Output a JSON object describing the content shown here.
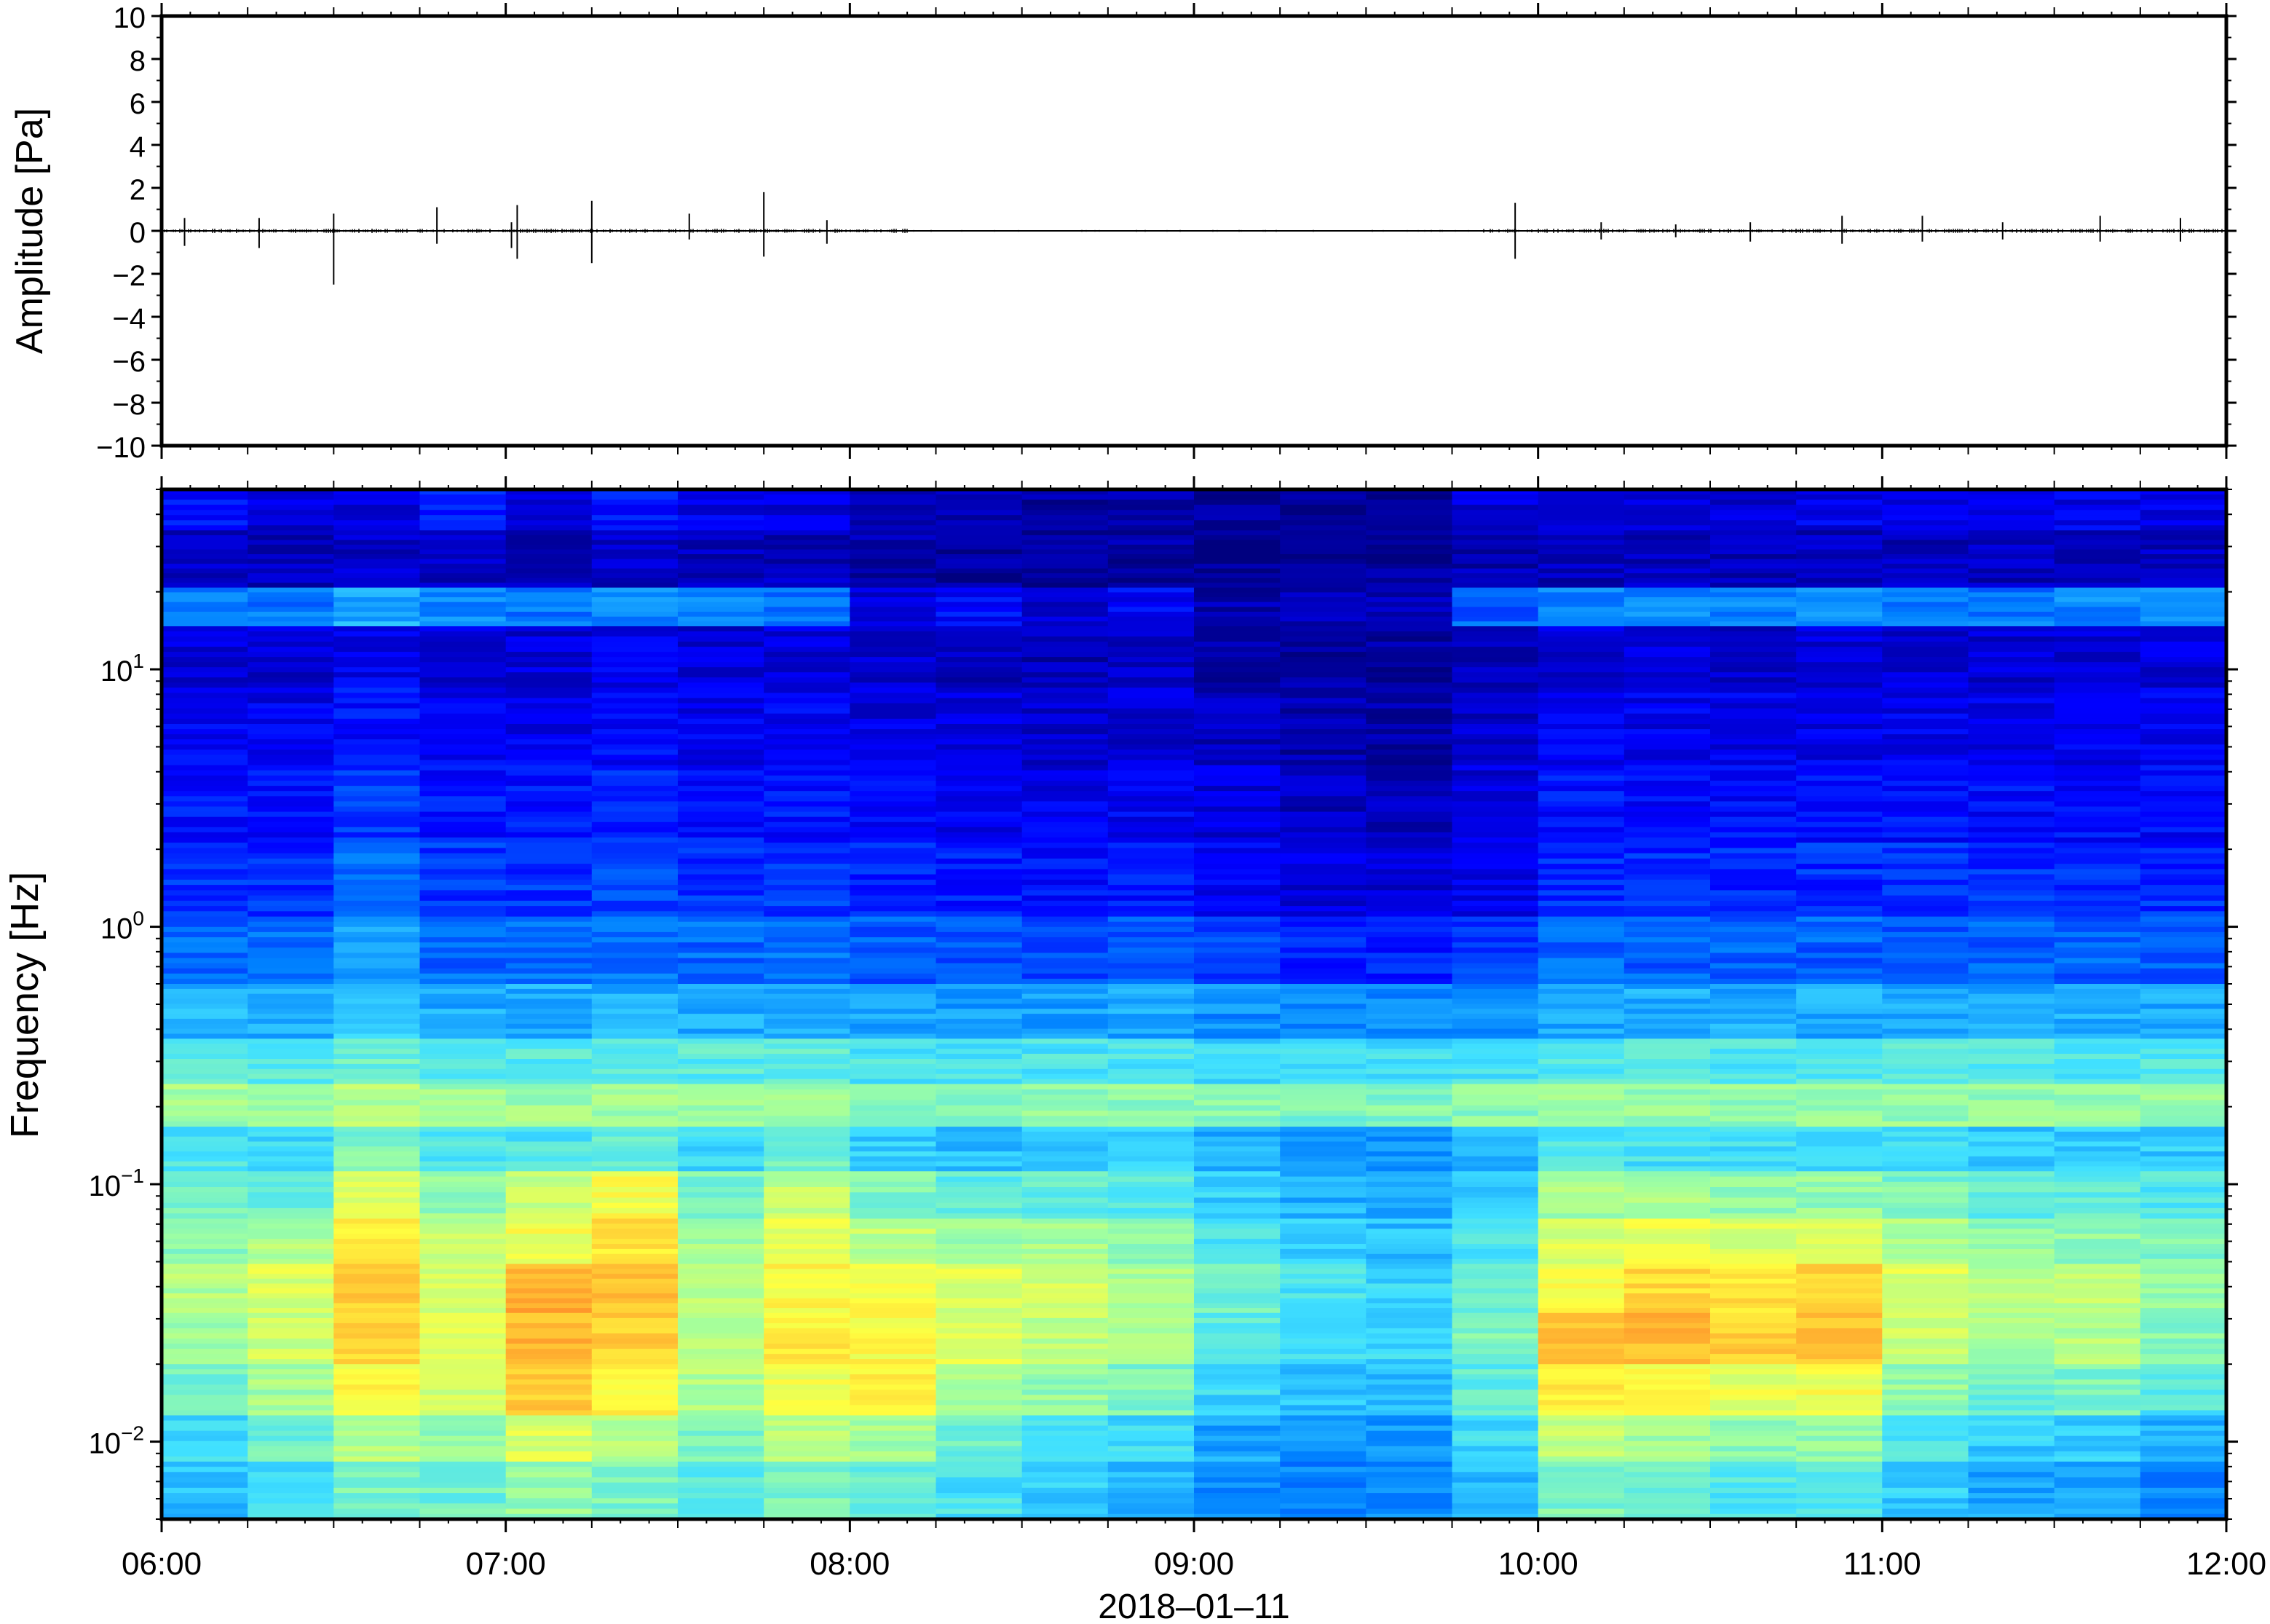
{
  "date_label": "2018–01–11",
  "x_ticks": [
    {
      "t": "06:00",
      "label": "06:00"
    },
    {
      "t": "07:00",
      "label": "07:00"
    },
    {
      "t": "08:00",
      "label": "08:00"
    },
    {
      "t": "09:00",
      "label": "09:00"
    },
    {
      "t": "10:00",
      "label": "10:00"
    },
    {
      "t": "11:00",
      "label": "11:00"
    },
    {
      "t": "12:00",
      "label": "12:00"
    }
  ],
  "chart_data": [
    {
      "type": "line",
      "ylabel": "Amplitude [Pa]",
      "xlim": [
        "06:00",
        "12:00"
      ],
      "ylim": [
        -10,
        10
      ],
      "y_ticks": [
        {
          "v": 10,
          "label": "10"
        },
        {
          "v": 8,
          "label": "8"
        },
        {
          "v": 6,
          "label": "6"
        },
        {
          "v": 4,
          "label": "4"
        },
        {
          "v": 2,
          "label": "2"
        },
        {
          "v": 0,
          "label": "0"
        },
        {
          "v": -2,
          "label": "−2"
        },
        {
          "v": -4,
          "label": "−4"
        },
        {
          "v": -6,
          "label": "−6"
        },
        {
          "v": -8,
          "label": "−8"
        },
        {
          "v": -10,
          "label": "−10"
        }
      ],
      "baseline": 0,
      "spikes": [
        {
          "t": "06:04",
          "max": 0.6,
          "min": -0.7
        },
        {
          "t": "06:17",
          "max": 0.6,
          "min": -0.8
        },
        {
          "t": "06:30",
          "max": 0.8,
          "min": -2.5
        },
        {
          "t": "06:48",
          "max": 1.1,
          "min": -0.6
        },
        {
          "t": "07:01",
          "max": 0.4,
          "min": -0.8
        },
        {
          "t": "07:02",
          "max": 1.2,
          "min": -1.3
        },
        {
          "t": "07:15",
          "max": 1.4,
          "min": -1.5
        },
        {
          "t": "07:32",
          "max": 0.8,
          "min": -0.4
        },
        {
          "t": "07:45",
          "max": 1.8,
          "min": -1.2
        },
        {
          "t": "07:56",
          "max": 0.5,
          "min": -0.6
        },
        {
          "t": "09:56",
          "max": 1.3,
          "min": -1.3
        },
        {
          "t": "10:11",
          "max": 0.4,
          "min": -0.4
        },
        {
          "t": "10:24",
          "max": 0.3,
          "min": -0.3
        },
        {
          "t": "10:37",
          "max": 0.4,
          "min": -0.5
        },
        {
          "t": "10:53",
          "max": 0.7,
          "min": -0.6
        },
        {
          "t": "11:07",
          "max": 0.7,
          "min": -0.5
        },
        {
          "t": "11:21",
          "max": 0.4,
          "min": -0.4
        },
        {
          "t": "11:38",
          "max": 0.7,
          "min": -0.5
        },
        {
          "t": "11:52",
          "max": 0.6,
          "min": -0.5
        }
      ],
      "colors": {
        "trace": "#000000",
        "frame": "#000000"
      }
    },
    {
      "type": "heatmap",
      "ylabel": "Frequency [Hz]",
      "xlabel": "2018–01–11",
      "y_scale": "log",
      "xlim": [
        "06:00",
        "12:00"
      ],
      "ylim": [
        0.005,
        50
      ],
      "y_ticks": [
        {
          "v": 10,
          "base": "10",
          "exp": "1"
        },
        {
          "v": 1,
          "base": "10",
          "exp": "0"
        },
        {
          "v": 0.1,
          "base": "10",
          "exp": "−1"
        },
        {
          "v": 0.01,
          "base": "10",
          "exp": "−2"
        }
      ],
      "colormap": [
        "#00007f",
        "#0000ff",
        "#0080ff",
        "#40e0ff",
        "#a0ffa0",
        "#ffff40",
        "#ffb030",
        "#ff6020"
      ],
      "bands_hz": [
        40,
        30,
        24,
        18,
        12,
        6,
        3,
        1.5,
        0.8,
        0.45,
        0.3,
        0.2,
        0.14,
        0.09,
        0.06,
        0.04,
        0.025,
        0.016,
        0.01,
        0.007
      ],
      "time_slices": [
        "06:00",
        "06:15",
        "06:30",
        "06:45",
        "07:00",
        "07:15",
        "07:30",
        "07:45",
        "08:00",
        "08:15",
        "08:30",
        "08:45",
        "09:00",
        "09:15",
        "09:30",
        "09:45",
        "10:00",
        "10:15",
        "10:30",
        "10:45",
        "11:00",
        "11:15",
        "11:30",
        "11:45"
      ],
      "relative_power": [
        [
          0.15,
          0.1,
          0.1,
          0.18,
          0.12,
          0.16,
          0.12,
          0.1,
          0.08,
          0.05,
          0.04,
          0.05,
          0.03,
          0.02,
          0.02,
          0.1,
          0.12,
          0.12,
          0.1,
          0.12,
          0.12,
          0.11,
          0.12,
          0.12
        ],
        [
          0.08,
          0.07,
          0.08,
          0.08,
          0.07,
          0.08,
          0.07,
          0.07,
          0.06,
          0.04,
          0.03,
          0.04,
          0.02,
          0.02,
          0.02,
          0.06,
          0.07,
          0.07,
          0.06,
          0.07,
          0.07,
          0.07,
          0.07,
          0.07
        ],
        [
          0.08,
          0.07,
          0.08,
          0.08,
          0.07,
          0.08,
          0.07,
          0.07,
          0.05,
          0.04,
          0.03,
          0.03,
          0.02,
          0.02,
          0.03,
          0.06,
          0.07,
          0.07,
          0.06,
          0.07,
          0.07,
          0.07,
          0.07,
          0.07
        ],
        [
          0.3,
          0.28,
          0.35,
          0.3,
          0.28,
          0.3,
          0.3,
          0.28,
          0.1,
          0.15,
          0.1,
          0.14,
          0.05,
          0.06,
          0.06,
          0.25,
          0.3,
          0.3,
          0.3,
          0.3,
          0.28,
          0.28,
          0.3,
          0.3
        ],
        [
          0.1,
          0.09,
          0.12,
          0.1,
          0.1,
          0.12,
          0.1,
          0.1,
          0.08,
          0.07,
          0.06,
          0.07,
          0.05,
          0.04,
          0.04,
          0.07,
          0.1,
          0.1,
          0.09,
          0.1,
          0.1,
          0.09,
          0.1,
          0.1
        ],
        [
          0.13,
          0.12,
          0.16,
          0.13,
          0.12,
          0.15,
          0.12,
          0.13,
          0.11,
          0.1,
          0.09,
          0.1,
          0.07,
          0.05,
          0.05,
          0.08,
          0.13,
          0.12,
          0.12,
          0.12,
          0.12,
          0.12,
          0.12,
          0.12
        ],
        [
          0.16,
          0.15,
          0.2,
          0.16,
          0.16,
          0.18,
          0.16,
          0.16,
          0.14,
          0.13,
          0.12,
          0.13,
          0.1,
          0.07,
          0.07,
          0.1,
          0.16,
          0.15,
          0.15,
          0.15,
          0.15,
          0.15,
          0.15,
          0.15
        ],
        [
          0.2,
          0.19,
          0.26,
          0.2,
          0.2,
          0.22,
          0.2,
          0.2,
          0.18,
          0.17,
          0.16,
          0.17,
          0.14,
          0.1,
          0.1,
          0.13,
          0.19,
          0.19,
          0.18,
          0.19,
          0.19,
          0.19,
          0.19,
          0.19
        ],
        [
          0.26,
          0.26,
          0.33,
          0.26,
          0.26,
          0.28,
          0.26,
          0.27,
          0.24,
          0.24,
          0.23,
          0.24,
          0.21,
          0.18,
          0.18,
          0.2,
          0.26,
          0.25,
          0.25,
          0.25,
          0.25,
          0.25,
          0.25,
          0.25
        ],
        [
          0.36,
          0.35,
          0.4,
          0.35,
          0.35,
          0.36,
          0.35,
          0.36,
          0.34,
          0.33,
          0.33,
          0.34,
          0.31,
          0.3,
          0.3,
          0.31,
          0.35,
          0.35,
          0.35,
          0.35,
          0.35,
          0.35,
          0.35,
          0.35
        ],
        [
          0.48,
          0.47,
          0.5,
          0.47,
          0.47,
          0.48,
          0.47,
          0.48,
          0.45,
          0.44,
          0.45,
          0.44,
          0.42,
          0.42,
          0.43,
          0.44,
          0.46,
          0.46,
          0.46,
          0.46,
          0.46,
          0.46,
          0.46,
          0.46
        ],
        [
          0.58,
          0.56,
          0.6,
          0.57,
          0.57,
          0.58,
          0.57,
          0.58,
          0.55,
          0.54,
          0.55,
          0.55,
          0.53,
          0.52,
          0.53,
          0.54,
          0.56,
          0.56,
          0.56,
          0.56,
          0.56,
          0.56,
          0.56,
          0.56
        ],
        [
          0.45,
          0.42,
          0.52,
          0.46,
          0.45,
          0.48,
          0.42,
          0.5,
          0.4,
          0.38,
          0.4,
          0.4,
          0.35,
          0.33,
          0.32,
          0.36,
          0.45,
          0.44,
          0.43,
          0.43,
          0.42,
          0.4,
          0.4,
          0.4
        ],
        [
          0.52,
          0.5,
          0.66,
          0.56,
          0.62,
          0.7,
          0.52,
          0.62,
          0.52,
          0.48,
          0.48,
          0.46,
          0.4,
          0.36,
          0.34,
          0.4,
          0.58,
          0.58,
          0.56,
          0.56,
          0.52,
          0.48,
          0.48,
          0.46
        ],
        [
          0.55,
          0.6,
          0.74,
          0.62,
          0.7,
          0.76,
          0.58,
          0.68,
          0.62,
          0.58,
          0.58,
          0.55,
          0.46,
          0.4,
          0.38,
          0.46,
          0.66,
          0.68,
          0.66,
          0.68,
          0.6,
          0.55,
          0.55,
          0.52
        ],
        [
          0.6,
          0.66,
          0.8,
          0.66,
          0.86,
          0.82,
          0.62,
          0.72,
          0.7,
          0.66,
          0.64,
          0.6,
          0.5,
          0.44,
          0.42,
          0.5,
          0.72,
          0.78,
          0.76,
          0.8,
          0.66,
          0.6,
          0.62,
          0.56
        ],
        [
          0.58,
          0.64,
          0.78,
          0.68,
          0.84,
          0.8,
          0.62,
          0.74,
          0.72,
          0.66,
          0.62,
          0.58,
          0.48,
          0.44,
          0.42,
          0.52,
          0.82,
          0.84,
          0.8,
          0.82,
          0.64,
          0.58,
          0.6,
          0.54
        ],
        [
          0.5,
          0.58,
          0.72,
          0.64,
          0.8,
          0.72,
          0.6,
          0.7,
          0.74,
          0.6,
          0.56,
          0.52,
          0.42,
          0.38,
          0.38,
          0.48,
          0.74,
          0.7,
          0.68,
          0.7,
          0.56,
          0.5,
          0.52,
          0.46
        ],
        [
          0.42,
          0.5,
          0.6,
          0.56,
          0.66,
          0.6,
          0.52,
          0.6,
          0.58,
          0.5,
          0.46,
          0.42,
          0.34,
          0.32,
          0.32,
          0.42,
          0.62,
          0.58,
          0.54,
          0.56,
          0.46,
          0.4,
          0.4,
          0.36
        ],
        [
          0.38,
          0.44,
          0.52,
          0.5,
          0.56,
          0.52,
          0.46,
          0.52,
          0.5,
          0.44,
          0.4,
          0.36,
          0.3,
          0.3,
          0.3,
          0.38,
          0.52,
          0.5,
          0.46,
          0.46,
          0.4,
          0.34,
          0.34,
          0.3
        ]
      ]
    }
  ]
}
